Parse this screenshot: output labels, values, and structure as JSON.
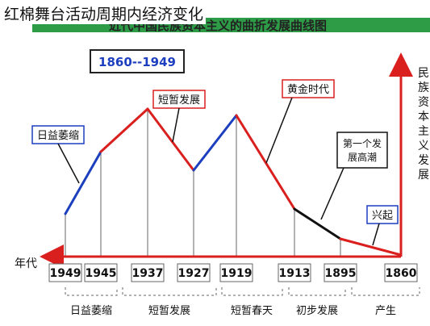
{
  "overlay_title": "红棉舞台活动周期内经济变化",
  "diagram": {
    "banner_title": "近代中国民族资本主义的曲折发展曲线图",
    "period_label": "1860--1949",
    "y_axis_label": "民族资本主义发展",
    "x_axis_label": "年代",
    "years": [
      {
        "label": "1949",
        "year": 1949
      },
      {
        "label": "1945",
        "year": 1945
      },
      {
        "label": "1937",
        "year": 1937
      },
      {
        "label": "1927",
        "year": 1927
      },
      {
        "label": "1919",
        "year": 1919
      },
      {
        "label": "1913",
        "year": 1913
      },
      {
        "label": "1895",
        "year": 1895
      },
      {
        "label": "1860",
        "year": 1860
      }
    ],
    "segments": [
      {
        "name": "兴起",
        "from": 1860,
        "to": 1895,
        "color": "#d9201e"
      },
      {
        "name": "初步发展",
        "from": 1895,
        "to": 1913,
        "color": "#111111"
      },
      {
        "name": "短暂春天",
        "from": 1913,
        "to": 1919,
        "color": "#d9201e"
      },
      {
        "name": "短暂发展",
        "from": 1927,
        "to": 1937,
        "color": "#d9201e"
      },
      {
        "name": "日益萎缩",
        "from": 1945,
        "to": 1949,
        "color": "#1c3fbf"
      }
    ],
    "curve_labels": [
      {
        "text": "兴起"
      },
      {
        "text": "第一个发展高潮"
      },
      {
        "text": "黄金时代"
      },
      {
        "text": "短暂发展"
      },
      {
        "text": "日益萎缩"
      }
    ],
    "bottom_labels": [
      {
        "text": "日益萎缩"
      },
      {
        "text": "短暂发展"
      },
      {
        "text": "短暂春天"
      },
      {
        "text": "初步发展"
      },
      {
        "text": "产生"
      }
    ],
    "colors": {
      "green_band": "#2e9b47",
      "red": "#d9201e",
      "blue": "#1c3fbf",
      "black": "#111111",
      "axis_red": "#d9201e",
      "period_box_border": "#222222",
      "period_text": "#1c3fbf"
    }
  }
}
